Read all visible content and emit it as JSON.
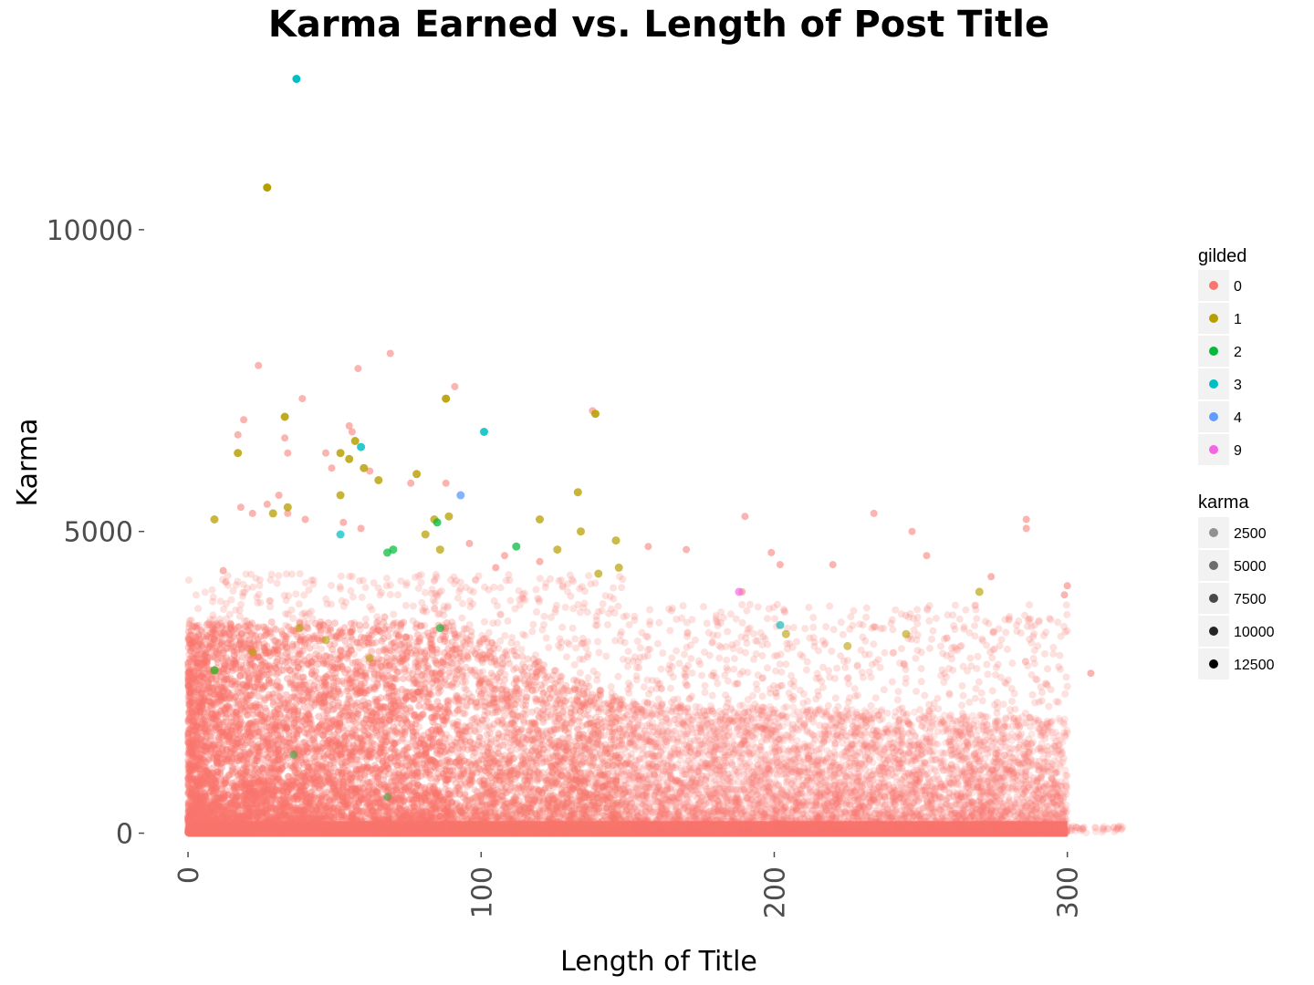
{
  "chart_data": {
    "type": "scatter",
    "title": "Karma Earned vs. Length of Post Title",
    "xlabel": "Length of Title",
    "ylabel": "Karma",
    "xlim": [
      -5,
      325
    ],
    "ylim": [
      -400,
      12900
    ],
    "x_ticks": [
      0,
      100,
      200,
      300
    ],
    "x_tick_labels": [
      "0",
      "100",
      "200",
      "300"
    ],
    "y_ticks": [
      0,
      5000,
      10000
    ],
    "y_tick_labels": [
      "0",
      "5000",
      "10000"
    ],
    "grid": false,
    "legend_placement": "right",
    "legend_color": {
      "title": "gilded",
      "items": [
        {
          "label": "0",
          "color": "#F8766D"
        },
        {
          "label": "1",
          "color": "#B79F00"
        },
        {
          "label": "2",
          "color": "#00BA38"
        },
        {
          "label": "3",
          "color": "#00BFC4"
        },
        {
          "label": "4",
          "color": "#619CFF"
        },
        {
          "label": "9",
          "color": "#F564E3"
        }
      ]
    },
    "legend_alpha": {
      "title": "karma",
      "items": [
        {
          "label": "2500",
          "value": 2500
        },
        {
          "label": "5000",
          "value": 5000
        },
        {
          "label": "7500",
          "value": 7500
        },
        {
          "label": "10000",
          "value": 10000
        },
        {
          "label": "12500",
          "value": 12500
        }
      ]
    },
    "series": [
      {
        "name": "1",
        "color": "#B79F00",
        "points": [
          [
            27,
            10700
          ],
          [
            33,
            6900
          ],
          [
            17,
            6300
          ],
          [
            9,
            5200
          ],
          [
            57,
            6500
          ],
          [
            52,
            6300
          ],
          [
            55,
            6200
          ],
          [
            60,
            6050
          ],
          [
            65,
            5850
          ],
          [
            78,
            5950
          ],
          [
            52,
            5600
          ],
          [
            34,
            5400
          ],
          [
            29,
            5300
          ],
          [
            88,
            7200
          ],
          [
            89,
            5250
          ],
          [
            133,
            5650
          ],
          [
            139,
            6950
          ],
          [
            120,
            5200
          ],
          [
            134,
            5000
          ],
          [
            146,
            4850
          ],
          [
            147,
            4400
          ],
          [
            126,
            4700
          ],
          [
            140,
            4300
          ],
          [
            81,
            4950
          ],
          [
            86,
            4700
          ],
          [
            84,
            5200
          ],
          [
            270,
            4000
          ],
          [
            204,
            3300
          ],
          [
            245,
            3300
          ],
          [
            225,
            3100
          ],
          [
            9,
            2700
          ],
          [
            22,
            3000
          ],
          [
            47,
            3200
          ],
          [
            62,
            2900
          ],
          [
            38,
            3400
          ]
        ]
      },
      {
        "name": "2",
        "color": "#00BA38",
        "points": [
          [
            85,
            5150
          ],
          [
            70,
            4700
          ],
          [
            68,
            4650
          ],
          [
            112,
            4750
          ],
          [
            86,
            3400
          ],
          [
            9,
            2700
          ],
          [
            36,
            1300
          ],
          [
            68,
            600
          ]
        ]
      },
      {
        "name": "3",
        "color": "#00BFC4",
        "points": [
          [
            37,
            12500
          ],
          [
            101,
            6650
          ],
          [
            59,
            6400
          ],
          [
            52,
            4950
          ],
          [
            202,
            3450
          ]
        ]
      },
      {
        "name": "4",
        "color": "#619CFF",
        "points": [
          [
            93,
            5600
          ]
        ]
      },
      {
        "name": "9",
        "color": "#F564E3",
        "points": [
          [
            188,
            4000
          ]
        ]
      }
    ]
  }
}
